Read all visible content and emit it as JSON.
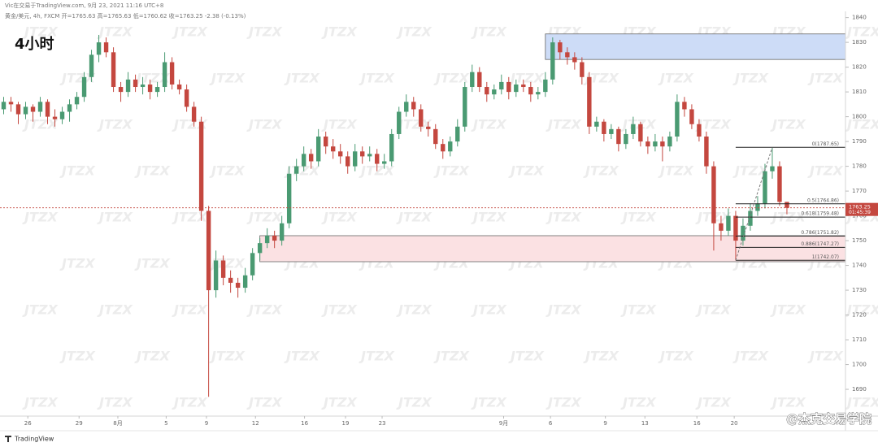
{
  "chart_data": {
    "type": "candlestick",
    "credit": "Vic在交易于TradingView.com, 9月 23, 2021 11:16 UTC+8",
    "legend_text": "黄金/美元, 4h, FXCM  开=1765.63 高=1765.63 低=1760.62 收=1763.25 -2.38 (-0.13%)",
    "title": "4小时",
    "watermark": "JTZX",
    "brand": "TradingView",
    "signature": "@杰克交易学院",
    "up_color": "#4a9a72",
    "down_color": "#c4473f",
    "xlim": [
      -0.5,
      115
    ],
    "xticks": [
      {
        "value": 3.3,
        "label": "26"
      },
      {
        "value": 10.3,
        "label": "29"
      },
      {
        "value": 15.6,
        "label": "8月"
      },
      {
        "value": 22.2,
        "label": "5"
      },
      {
        "value": 27.7,
        "label": "9"
      },
      {
        "value": 34.4,
        "label": "12"
      },
      {
        "value": 41.1,
        "label": "16"
      },
      {
        "value": 46.7,
        "label": "19"
      },
      {
        "value": 51.7,
        "label": "23"
      },
      {
        "value": 68.3,
        "label": "9月"
      },
      {
        "value": 74.7,
        "label": "6"
      },
      {
        "value": 82.2,
        "label": "9"
      },
      {
        "value": 87.6,
        "label": "13"
      },
      {
        "value": 94.7,
        "label": "16"
      },
      {
        "value": 99.8,
        "label": "20"
      }
    ],
    "ylim": [
      1679.2,
      1842.5
    ],
    "yticks": [
      1690,
      1700,
      1710,
      1720,
      1730,
      1740,
      1750,
      1760,
      1770,
      1780,
      1790,
      1800,
      1810,
      1820,
      1830,
      1840
    ],
    "ohlc": [
      [
        1803,
        1808,
        1801,
        1806
      ],
      [
        1806,
        1808,
        1802,
        1805
      ],
      [
        1805,
        1806,
        1797,
        1801
      ],
      [
        1801,
        1806,
        1799,
        1804
      ],
      [
        1804,
        1805,
        1798,
        1802
      ],
      [
        1802,
        1808,
        1800,
        1806
      ],
      [
        1806,
        1807,
        1797,
        1800
      ],
      [
        1800,
        1803,
        1796,
        1799
      ],
      [
        1799,
        1804,
        1797,
        1802
      ],
      [
        1802,
        1807,
        1798,
        1805
      ],
      [
        1805,
        1810,
        1803,
        1808
      ],
      [
        1808,
        1818,
        1806,
        1816
      ],
      [
        1816,
        1827,
        1814,
        1825
      ],
      [
        1825,
        1833,
        1822,
        1830
      ],
      [
        1830,
        1832,
        1824,
        1826
      ],
      [
        1826,
        1828,
        1810,
        1812
      ],
      [
        1812,
        1814,
        1806,
        1810
      ],
      [
        1810,
        1818,
        1808,
        1815
      ],
      [
        1815,
        1817,
        1810,
        1812
      ],
      [
        1812,
        1816,
        1809,
        1813
      ],
      [
        1813,
        1815,
        1807,
        1810
      ],
      [
        1810,
        1814,
        1808,
        1812
      ],
      [
        1812,
        1826,
        1810,
        1822
      ],
      [
        1822,
        1824,
        1811,
        1813
      ],
      [
        1813,
        1815,
        1809,
        1811
      ],
      [
        1811,
        1813,
        1802,
        1804
      ],
      [
        1804,
        1806,
        1796,
        1798
      ],
      [
        1798,
        1800,
        1758,
        1762
      ],
      [
        1762,
        1764,
        1687,
        1730
      ],
      [
        1730,
        1746,
        1727,
        1742
      ],
      [
        1742,
        1744,
        1732,
        1735
      ],
      [
        1735,
        1738,
        1729,
        1733
      ],
      [
        1733,
        1735,
        1727,
        1731
      ],
      [
        1731,
        1739,
        1729,
        1736
      ],
      [
        1736,
        1747,
        1734,
        1745
      ],
      [
        1745,
        1751,
        1742,
        1749
      ],
      [
        1749,
        1755,
        1747,
        1752
      ],
      [
        1752,
        1754,
        1747,
        1750
      ],
      [
        1750,
        1760,
        1748,
        1757
      ],
      [
        1757,
        1780,
        1755,
        1777
      ],
      [
        1777,
        1783,
        1774,
        1780
      ],
      [
        1780,
        1788,
        1778,
        1785
      ],
      [
        1785,
        1787,
        1779,
        1782
      ],
      [
        1782,
        1795,
        1780,
        1792
      ],
      [
        1792,
        1794,
        1785,
        1788
      ],
      [
        1788,
        1791,
        1783,
        1786
      ],
      [
        1786,
        1789,
        1781,
        1784
      ],
      [
        1784,
        1786,
        1777,
        1780
      ],
      [
        1780,
        1789,
        1778,
        1786
      ],
      [
        1786,
        1788,
        1781,
        1784
      ],
      [
        1784,
        1788,
        1782,
        1785
      ],
      [
        1785,
        1787,
        1778,
        1781
      ],
      [
        1781,
        1785,
        1779,
        1782
      ],
      [
        1782,
        1795,
        1780,
        1793
      ],
      [
        1793,
        1804,
        1791,
        1802
      ],
      [
        1802,
        1809,
        1800,
        1806
      ],
      [
        1806,
        1808,
        1800,
        1803
      ],
      [
        1803,
        1805,
        1794,
        1796
      ],
      [
        1796,
        1798,
        1792,
        1795
      ],
      [
        1795,
        1797,
        1787,
        1789
      ],
      [
        1789,
        1791,
        1783,
        1786
      ],
      [
        1786,
        1792,
        1784,
        1790
      ],
      [
        1790,
        1799,
        1788,
        1796
      ],
      [
        1796,
        1814,
        1794,
        1812
      ],
      [
        1812,
        1821,
        1810,
        1818
      ],
      [
        1818,
        1820,
        1810,
        1812
      ],
      [
        1812,
        1814,
        1806,
        1809
      ],
      [
        1809,
        1813,
        1807,
        1811
      ],
      [
        1811,
        1817,
        1809,
        1814
      ],
      [
        1814,
        1816,
        1807,
        1810
      ],
      [
        1810,
        1815,
        1808,
        1813
      ],
      [
        1813,
        1815,
        1810,
        1812
      ],
      [
        1812,
        1814,
        1806,
        1809
      ],
      [
        1809,
        1812,
        1807,
        1810
      ],
      [
        1810,
        1818,
        1808,
        1815
      ],
      [
        1815,
        1832,
        1813,
        1830
      ],
      [
        1830,
        1831,
        1823,
        1826
      ],
      [
        1826,
        1828,
        1821,
        1824
      ],
      [
        1824,
        1826,
        1819,
        1822
      ],
      [
        1822,
        1824,
        1813,
        1816
      ],
      [
        1816,
        1818,
        1793,
        1796
      ],
      [
        1796,
        1800,
        1794,
        1798
      ],
      [
        1798,
        1799,
        1790,
        1793
      ],
      [
        1793,
        1797,
        1791,
        1795
      ],
      [
        1795,
        1796,
        1786,
        1789
      ],
      [
        1789,
        1795,
        1787,
        1793
      ],
      [
        1793,
        1800,
        1791,
        1797
      ],
      [
        1797,
        1798,
        1788,
        1790
      ],
      [
        1790,
        1792,
        1785,
        1788
      ],
      [
        1788,
        1793,
        1786,
        1790
      ],
      [
        1790,
        1792,
        1782,
        1788
      ],
      [
        1788,
        1794,
        1786,
        1792
      ],
      [
        1792,
        1809,
        1790,
        1806
      ],
      [
        1806,
        1808,
        1800,
        1803
      ],
      [
        1803,
        1805,
        1795,
        1797
      ],
      [
        1797,
        1799,
        1790,
        1792
      ],
      [
        1792,
        1794,
        1777,
        1780
      ],
      [
        1780,
        1782,
        1746,
        1757
      ],
      [
        1757,
        1760,
        1750,
        1754
      ],
      [
        1754,
        1763,
        1752,
        1760
      ],
      [
        1760,
        1762,
        1742.07,
        1750
      ],
      [
        1750,
        1759,
        1748,
        1756
      ],
      [
        1756,
        1765,
        1754,
        1762
      ],
      [
        1762,
        1768,
        1760,
        1765
      ],
      [
        1765,
        1781,
        1763,
        1778
      ],
      [
        1778,
        1787.65,
        1775,
        1780
      ],
      [
        1780,
        1782,
        1764,
        1765.63
      ],
      [
        1765.63,
        1765.63,
        1760.62,
        1763.25
      ]
    ],
    "zones": [
      {
        "x_start": 74,
        "top": 1833.4,
        "bottom": 1823.1,
        "color": "#cddcf7"
      },
      {
        "x_start": 35,
        "top": 1752,
        "bottom": 1741.5,
        "color": "#fbe1e3"
      }
    ],
    "fib": {
      "x_start": 100,
      "x_end": 105,
      "levels": [
        {
          "value": 1787.65,
          "label": "0(1787.65)"
        },
        {
          "value": 1764.86,
          "label": "0.5(1764.86)"
        },
        {
          "value": 1759.48,
          "label": "0.618(1759.48)"
        },
        {
          "value": 1751.82,
          "label": "0.786(1751.82)"
        },
        {
          "value": 1747.27,
          "label": "0.886(1747.27)"
        },
        {
          "value": 1742.07,
          "label": "1(1742.07)"
        }
      ]
    },
    "last_price": {
      "value": 1763.25,
      "countdown": "01:45:39"
    }
  }
}
